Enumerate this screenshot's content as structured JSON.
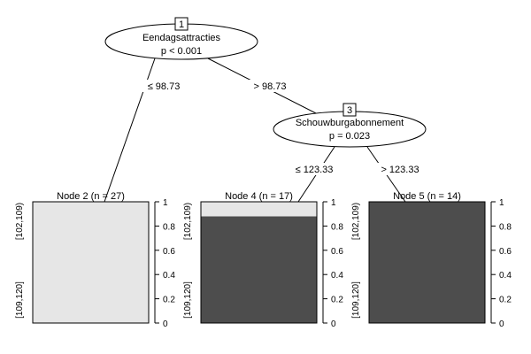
{
  "inner_nodes": [
    {
      "id": "1",
      "variable": "Eendagsattracties",
      "p_value": "p < 0.001"
    },
    {
      "id": "3",
      "variable": "Schouwburgabonnement",
      "p_value": "p = 0.023"
    }
  ],
  "edges": [
    {
      "label": "≤ 98.73"
    },
    {
      "label": "> 98.73"
    },
    {
      "label": "≤ 123.33"
    },
    {
      "label": "> 123.33"
    }
  ],
  "terminal_nodes": [
    {
      "title": "Node 2 (n = 27)",
      "fractions": [
        0,
        1
      ]
    },
    {
      "title": "Node 4 (n = 17)",
      "fractions": [
        0.88,
        0.12
      ]
    },
    {
      "title": "Node 5 (n = 14)",
      "fractions": [
        1,
        0
      ]
    }
  ],
  "classes": [
    "[102,109)",
    "[109,120]"
  ],
  "class_colors": [
    "#4d4d4d",
    "#e6e6e6"
  ],
  "y_ticks": [
    "0",
    "0.2",
    "0.4",
    "0.6",
    "0.8",
    "1"
  ]
}
